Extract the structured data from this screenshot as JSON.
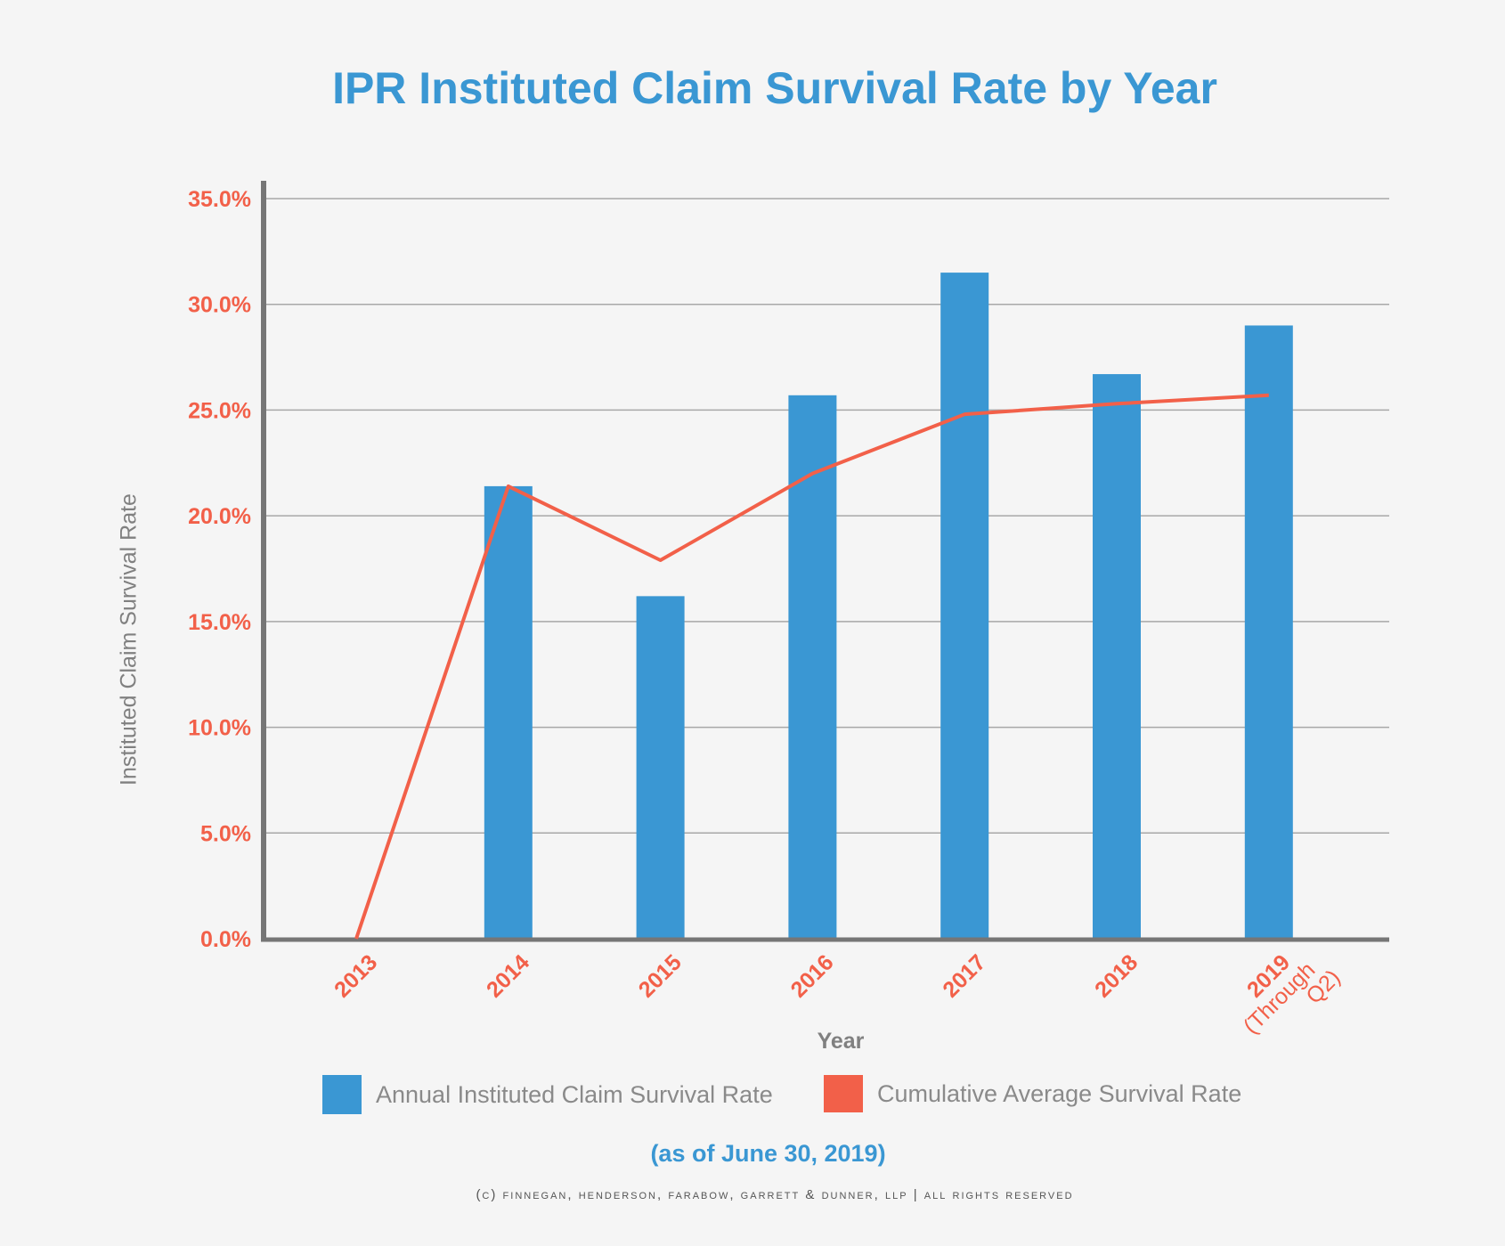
{
  "chart_data": {
    "type": "bar",
    "title": "IPR Instituted Claim Survival Rate by Year",
    "subtitle": "(as of June 30, 2019)",
    "xlabel": "Year",
    "ylabel": "Instituted Claim Survival Rate",
    "categories": [
      "2013",
      "2014",
      "2015",
      "2016",
      "2017",
      "2018",
      "2019 (Through Q2)"
    ],
    "ylim": [
      0,
      35
    ],
    "yticks": [
      "0.0%",
      "5.0%",
      "10.0%",
      "15.0%",
      "20.0%",
      "25.0%",
      "30.0%",
      "35.0%"
    ],
    "grid": true,
    "legend_placement": "bottom",
    "series": [
      {
        "name": "Annual Instituted Claim Survival Rate",
        "type": "bar",
        "color": "#3a97d3",
        "values": [
          0,
          21.4,
          16.2,
          25.7,
          31.5,
          26.7,
          29.0
        ]
      },
      {
        "name": "Cumulative Average Survival Rate",
        "type": "line",
        "color": "#f26049",
        "values": [
          0,
          21.4,
          17.9,
          22.0,
          24.8,
          25.3,
          25.7
        ]
      }
    ]
  },
  "footer": {
    "copyright": "(C) Finnegan, Henderson, Farabow, Garrett & Dunner, LLP | All Rights Reserved"
  }
}
